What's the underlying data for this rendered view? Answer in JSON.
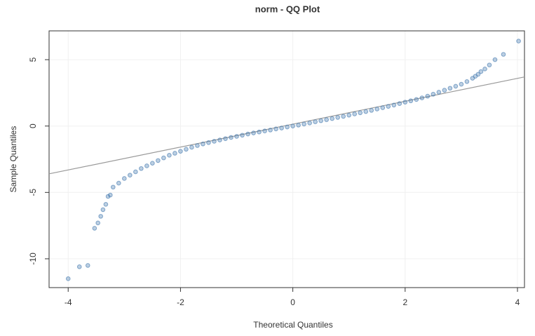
{
  "chart_data": {
    "type": "scatter",
    "title": "norm - QQ Plot",
    "x_label": "Theoretical Quantiles",
    "y_label": "Sample Quantiles",
    "x": [
      -4.0,
      -3.8,
      -3.65,
      -3.53,
      -3.47,
      -3.42,
      -3.38,
      -3.33,
      -3.29,
      -3.25,
      -3.2,
      -3.1,
      -3.0,
      -2.9,
      -2.8,
      -2.7,
      -2.6,
      -2.5,
      -2.4,
      -2.3,
      -2.2,
      -2.1,
      -2.0,
      -1.9,
      -1.8,
      -1.7,
      -1.6,
      -1.5,
      -1.4,
      -1.3,
      -1.2,
      -1.1,
      -1.0,
      -0.9,
      -0.8,
      -0.7,
      -0.6,
      -0.5,
      -0.4,
      -0.3,
      -0.2,
      -0.1,
      0,
      0.1,
      0.2,
      0.3,
      0.4,
      0.5,
      0.6,
      0.7,
      0.8,
      0.9,
      1.0,
      1.1,
      1.2,
      1.3,
      1.4,
      1.5,
      1.6,
      1.7,
      1.8,
      1.9,
      2.0,
      2.1,
      2.2,
      2.3,
      2.4,
      2.5,
      2.6,
      2.7,
      2.8,
      2.9,
      3.0,
      3.1,
      3.2,
      3.25,
      3.3,
      3.35,
      3.42,
      3.5,
      3.6,
      3.75,
      4.02
    ],
    "values": [
      -11.5,
      -10.6,
      -10.5,
      -7.7,
      -7.3,
      -6.8,
      -6.3,
      -5.9,
      -5.3,
      -5.2,
      -4.6,
      -4.3,
      -3.95,
      -3.7,
      -3.45,
      -3.2,
      -3.0,
      -2.8,
      -2.6,
      -2.4,
      -2.2,
      -2.05,
      -1.9,
      -1.75,
      -1.6,
      -1.47,
      -1.35,
      -1.25,
      -1.15,
      -1.05,
      -0.95,
      -0.86,
      -0.78,
      -0.69,
      -0.6,
      -0.52,
      -0.45,
      -0.37,
      -0.3,
      -0.22,
      -0.15,
      -0.07,
      0,
      0.07,
      0.15,
      0.23,
      0.32,
      0.4,
      0.48,
      0.56,
      0.65,
      0.73,
      0.82,
      0.91,
      1.0,
      1.09,
      1.18,
      1.28,
      1.38,
      1.48,
      1.58,
      1.69,
      1.8,
      1.9,
      2.0,
      2.12,
      2.25,
      2.4,
      2.55,
      2.7,
      2.85,
      3.0,
      3.15,
      3.35,
      3.6,
      3.75,
      3.9,
      4.1,
      4.3,
      4.6,
      5.0,
      5.4,
      6.4
    ],
    "color": "#3f76ad",
    "reference_line": {
      "x": [
        -4.34,
        4.125
      ],
      "values": [
        -3.6,
        3.7
      ],
      "color": "#9a9a9a"
    },
    "xlim": [
      -4.34,
      4.125
    ],
    "ylim": [
      -12.17,
      7.17
    ],
    "xticks": [
      -4,
      -2,
      0,
      2,
      4
    ],
    "yticks": [
      -10,
      -5,
      0,
      5
    ],
    "grid": true
  }
}
